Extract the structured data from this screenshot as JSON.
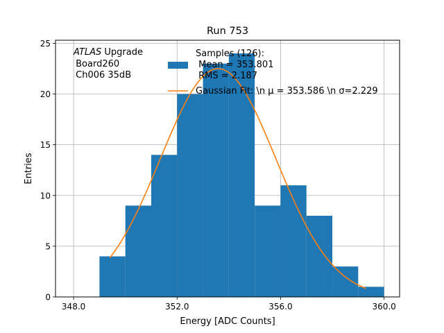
{
  "chart_data": {
    "type": "bar",
    "title": "Run 753",
    "xlabel": "Energy [ADC Counts]",
    "ylabel": "Entries",
    "xlim": [
      347.3,
      360.6
    ],
    "ylim": [
      0,
      25.3
    ],
    "grid": true,
    "x_ticks": [
      348.0,
      352.0,
      356.0,
      360.0
    ],
    "x_tick_labels": [
      "348.0",
      "352.0",
      "356.0",
      "360.0"
    ],
    "y_ticks": [
      0,
      5,
      10,
      15,
      20,
      25
    ],
    "y_tick_labels": [
      "0",
      "5",
      "10",
      "15",
      "20",
      "25"
    ],
    "histogram": {
      "name": "Samples",
      "color": "#1f77b4",
      "bin_edges": [
        349,
        350,
        351,
        352,
        353,
        354,
        355,
        356,
        357,
        358,
        359,
        360
      ],
      "counts": [
        4,
        9,
        14,
        20,
        23,
        24,
        9,
        11,
        8,
        3,
        1
      ]
    },
    "fit": {
      "name": "Gaussian Fit",
      "color": "#ff7f0e",
      "amplitude": 22.5,
      "mu": 353.586,
      "sigma": 2.229,
      "x_range": [
        349.4,
        359.3
      ]
    },
    "annotation": [
      "ATLAS",
      " Upgrade",
      " Board260",
      " Ch006 35dB"
    ],
    "legend": {
      "position": "top-center",
      "hist_lines": [
        "Samples (126):",
        " Mean = 353.801",
        " RMS = 2.187"
      ],
      "fit_line": "Gaussian Fit: \\n μ = 353.586 \\n σ=2.229"
    }
  }
}
